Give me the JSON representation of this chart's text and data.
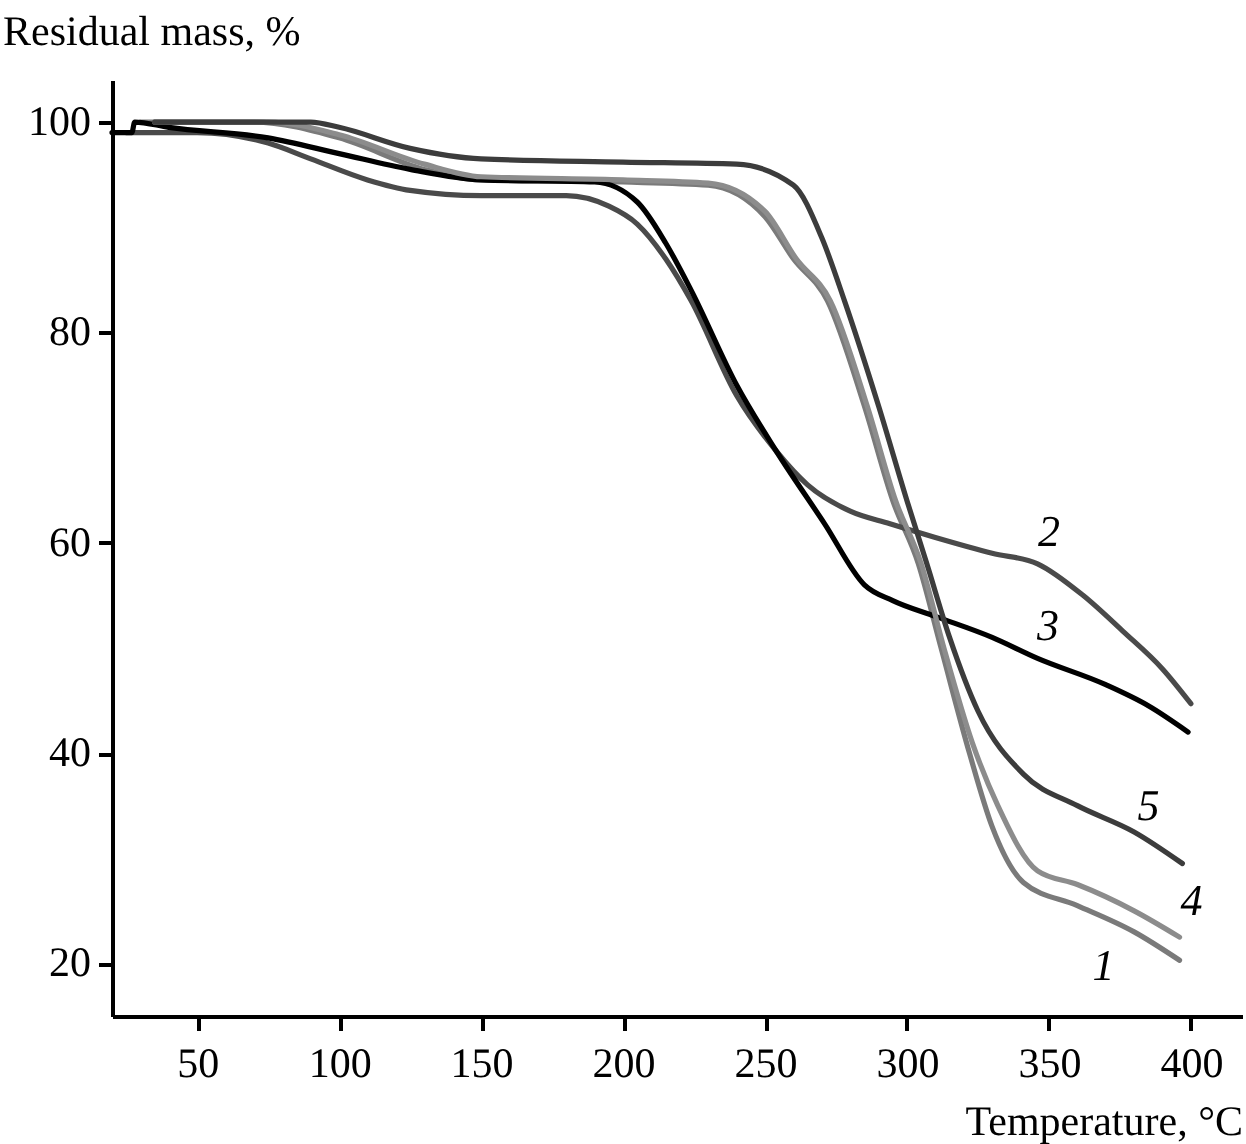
{
  "chart_data": {
    "type": "line",
    "xlabel": "Temperature, °C",
    "ylabel": "Residual mass, %",
    "xlim": [
      20,
      418
    ],
    "ylim": [
      15,
      104
    ],
    "xticks": [
      50,
      100,
      150,
      200,
      250,
      300,
      350,
      400
    ],
    "yticks": [
      20,
      40,
      60,
      80,
      100
    ],
    "grid": false,
    "marker": "none",
    "line_style": "solid",
    "series": [
      {
        "name": "1",
        "color": "#7a7a7a",
        "x": [
          30,
          70,
          100,
          130,
          150,
          200,
          230,
          250,
          260,
          272,
          285,
          295,
          304,
          312,
          322,
          330,
          341,
          360,
          380,
          396
        ],
        "values": [
          100,
          100,
          98.5,
          95.5,
          94.5,
          94.3,
          94,
          91,
          87,
          83,
          73,
          64,
          58,
          50,
          40,
          33,
          27.7,
          25.5,
          23,
          20.3
        ]
      },
      {
        "name": "2",
        "color": "#4a4a4a",
        "x": [
          25,
          50,
          75,
          90,
          110,
          125,
          150,
          180,
          195,
          205,
          215,
          224,
          240,
          254,
          265,
          280,
          294,
          310,
          330,
          346,
          362,
          376,
          390,
          400
        ],
        "values": [
          99,
          99,
          98,
          96.5,
          94.5,
          93.5,
          93,
          93,
          92,
          90.3,
          87,
          83,
          74,
          68.7,
          65.5,
          63,
          61.8,
          60.5,
          59,
          58,
          55,
          51.6,
          48,
          44.7
        ]
      },
      {
        "name": "3",
        "color": "#000000",
        "x": [
          20,
          27,
          28,
          40,
          75,
          100,
          125,
          150,
          190,
          205,
          215,
          224,
          240,
          254,
          271,
          285,
          295,
          310,
          330,
          346,
          370,
          385,
          399
        ],
        "values": [
          99,
          99,
          100,
          99.5,
          98.5,
          97,
          95.5,
          94.5,
          94.3,
          92.4,
          88.5,
          84,
          75,
          68.7,
          61.8,
          56,
          54.5,
          53,
          51,
          49,
          46.5,
          44.5,
          42
        ]
      },
      {
        "name": "4",
        "color": "#8c8c8c",
        "x": [
          35,
          75,
          100,
          130,
          150,
          200,
          230,
          250,
          261,
          273,
          286,
          296,
          305,
          313,
          323,
          332,
          346,
          360,
          380,
          396
        ],
        "values": [
          100,
          100,
          98.8,
          96,
          94.8,
          94.5,
          94.2,
          91.5,
          87,
          83,
          73,
          64,
          58,
          50,
          41,
          35,
          28.8,
          27.5,
          25,
          22.5
        ]
      },
      {
        "name": "5",
        "color": "#3c3c3c",
        "x": [
          35,
          60,
          90,
          100,
          125,
          150,
          200,
          240,
          260,
          270,
          278,
          290,
          300,
          307,
          315,
          325,
          341,
          360,
          380,
          397
        ],
        "values": [
          100,
          100,
          100,
          99.5,
          97.5,
          96.5,
          96.2,
          96,
          94,
          89,
          83,
          73,
          64,
          58,
          51,
          44,
          38,
          35,
          32.5,
          29.5
        ]
      }
    ]
  }
}
